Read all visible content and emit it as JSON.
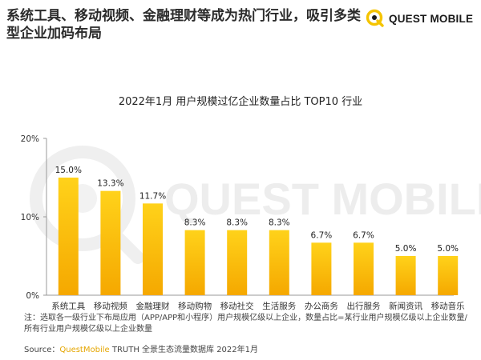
{
  "header": {
    "headline": "系统工具、移动视频、金融理财等成为热门行业，吸引多类型企业加码布局",
    "brand_name": "QUEST MOBILE"
  },
  "watermark": "QUEST MOBILE",
  "chart_data": {
    "type": "bar",
    "title": "2022年1月 用户规模过亿企业数量占比 TOP10 行业",
    "categories": [
      "系统工具",
      "移动视频",
      "金融理财",
      "移动购物",
      "移动社交",
      "生活服务",
      "办公商务",
      "出行服务",
      "新闻资讯",
      "移动音乐"
    ],
    "values": [
      15.0,
      13.3,
      11.7,
      8.3,
      8.3,
      8.3,
      6.7,
      6.7,
      5.0,
      5.0
    ],
    "value_labels": [
      "15.0%",
      "13.3%",
      "11.7%",
      "8.3%",
      "8.3%",
      "8.3%",
      "6.7%",
      "6.7%",
      "5.0%",
      "5.0%"
    ],
    "yticks": [
      0,
      10,
      20
    ],
    "ytick_labels": [
      "0%",
      "10%",
      "20%"
    ],
    "ylim": [
      0,
      20
    ],
    "grid": false,
    "bar_color_top": "#ffd21a",
    "bar_color_bottom": "#f5a800"
  },
  "footer": {
    "note": "注：选取各一级行业下布局应用（APP/APP和小程序）用户规模亿级以上企业，数量占比=某行业用户规模亿级以上企业数量/所有行业用户规模亿级以上企业数量",
    "source_prefix": "Source：",
    "source_brand": "QuestMobile",
    "source_rest": " TRUTH 全景生态流量数据库 2022年1月"
  },
  "colors": {
    "brand_yellow": "#f5c400",
    "watermark": "#ededed"
  }
}
